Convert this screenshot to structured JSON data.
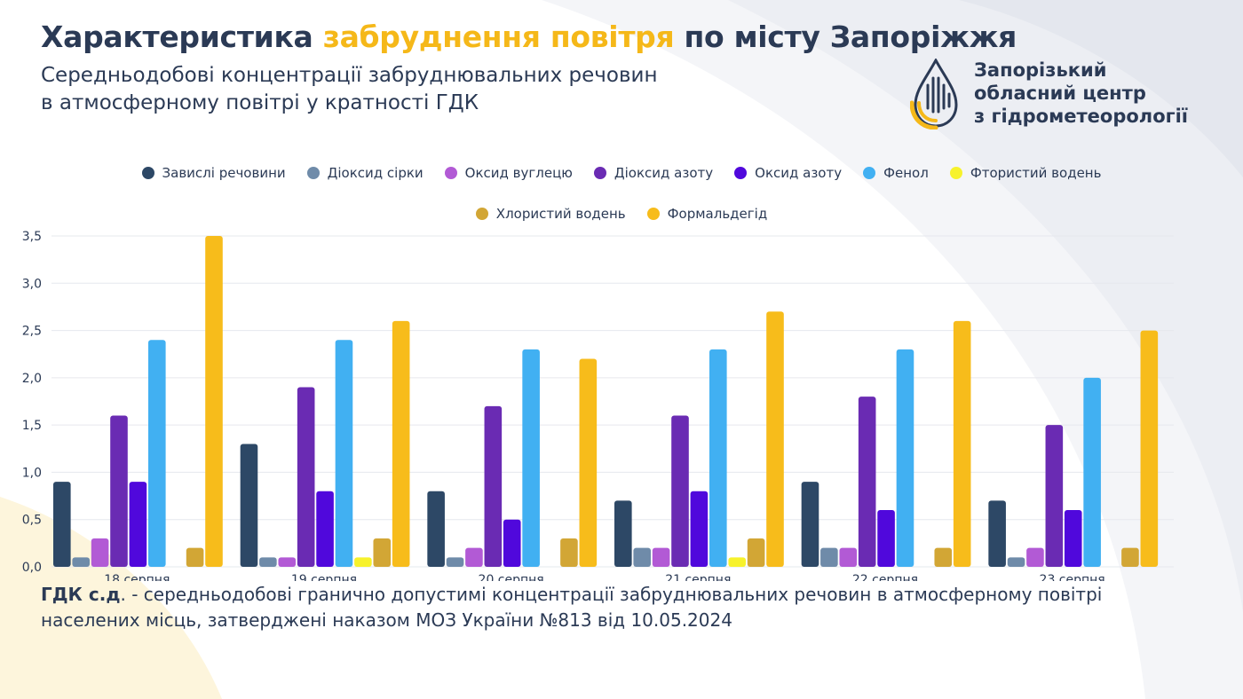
{
  "header": {
    "title_before": "Характеристика ",
    "title_accent": "забруднення повітря",
    "title_after": " по місту Запоріжжя",
    "subtitle_line1": "Середньодобові концентрації забруднювальних речовин",
    "subtitle_line2": "в атмосферному повітрі у кратності ГДК"
  },
  "org": {
    "line1": "Запорізький",
    "line2": "обласний центр",
    "line3": "з гідрометеорології",
    "logo_icon": "drop-logo-icon"
  },
  "colors": {
    "accent": "#f5b819",
    "text": "#2b3a55",
    "background_arc": "#eceef3",
    "gridline": "#e6e8ee"
  },
  "chart_data": {
    "type": "bar",
    "title": "",
    "xlabel": "",
    "ylabel": "",
    "ylim": [
      0,
      3.5
    ],
    "yticks": [
      "0,0",
      "0,5",
      "1,0",
      "1,5",
      "2,0",
      "2,5",
      "3,0",
      "3,5"
    ],
    "categories": [
      "18 серпня",
      "19 серпня",
      "20 серпня",
      "21 серпня",
      "22 серпня",
      "23 серпня"
    ],
    "legend_position": "top",
    "series": [
      {
        "name": "Завислі речовини",
        "color": "#2d4866",
        "values": [
          0.9,
          1.3,
          0.8,
          0.7,
          0.9,
          0.7
        ]
      },
      {
        "name": "Діоксид сірки",
        "color": "#6f8ba9",
        "values": [
          0.1,
          0.1,
          0.1,
          0.2,
          0.2,
          0.1
        ]
      },
      {
        "name": "Оксид вуглецю",
        "color": "#b25ad5",
        "values": [
          0.3,
          0.1,
          0.2,
          0.2,
          0.2,
          0.2
        ]
      },
      {
        "name": "Діоксид азоту",
        "color": "#6a2bb3",
        "values": [
          1.6,
          1.9,
          1.7,
          1.6,
          1.8,
          1.5
        ]
      },
      {
        "name": "Оксид азоту",
        "color": "#5008dc",
        "values": [
          0.9,
          0.8,
          0.5,
          0.8,
          0.6,
          0.6
        ]
      },
      {
        "name": "Фенол",
        "color": "#41b0f2",
        "values": [
          2.4,
          2.4,
          2.3,
          2.3,
          2.3,
          2.0
        ]
      },
      {
        "name": "Фтористий водень",
        "color": "#f7f22c",
        "values": [
          0.0,
          0.1,
          0.0,
          0.1,
          0.0,
          0.0
        ]
      },
      {
        "name": "Хлористий водень",
        "color": "#d2a635",
        "values": [
          0.2,
          0.3,
          0.3,
          0.3,
          0.2,
          0.2
        ]
      },
      {
        "name": "Формальдегід",
        "color": "#f7bc1b",
        "values": [
          3.5,
          2.6,
          2.2,
          2.7,
          2.6,
          2.5
        ]
      }
    ]
  },
  "note": {
    "term": "ГДК с.д",
    "text": ". - середньодобові гранично допустимі концентрації забруднювальних речовин в атмосферному повітрі населених місць, затверджені наказом МОЗ України №813 від 10.05.2024"
  }
}
